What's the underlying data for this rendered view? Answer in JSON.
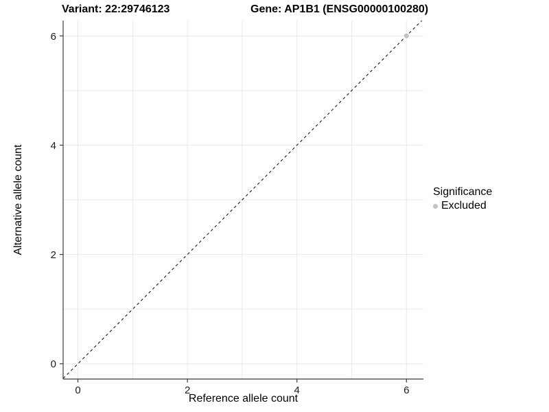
{
  "titles": {
    "variant": "Variant: 22:29746123",
    "gene": "Gene: AP1B1 (ENSG00000100280)"
  },
  "colors": {
    "background": "#ffffff",
    "grid": "#e9e9e9",
    "axis": "#3a3a3a",
    "identity_line": "#000000",
    "tick_text": "#1a1a1a",
    "excluded_point": "#c2c2c2"
  },
  "chart_data": {
    "type": "scatter",
    "title": "",
    "xlabel": "Reference allele count",
    "ylabel": "Alternative allele count",
    "xlim": [
      -0.27,
      6.31
    ],
    "ylim": [
      -0.28,
      6.28
    ],
    "x_ticks": [
      0,
      2,
      4,
      6
    ],
    "y_ticks": [
      0,
      2,
      4,
      6
    ],
    "grid": true,
    "grid_step": 1,
    "identity_line": {
      "slope": 1,
      "intercept": 0,
      "style": "dashed"
    },
    "series": [
      {
        "name": "Excluded",
        "color": "#c2c2c2",
        "points": [
          {
            "x": 6,
            "y": 6
          }
        ]
      }
    ],
    "legend": {
      "title": "Significance",
      "position": "right",
      "items": [
        {
          "label": "Excluded",
          "color": "#c2c2c2"
        }
      ]
    }
  }
}
